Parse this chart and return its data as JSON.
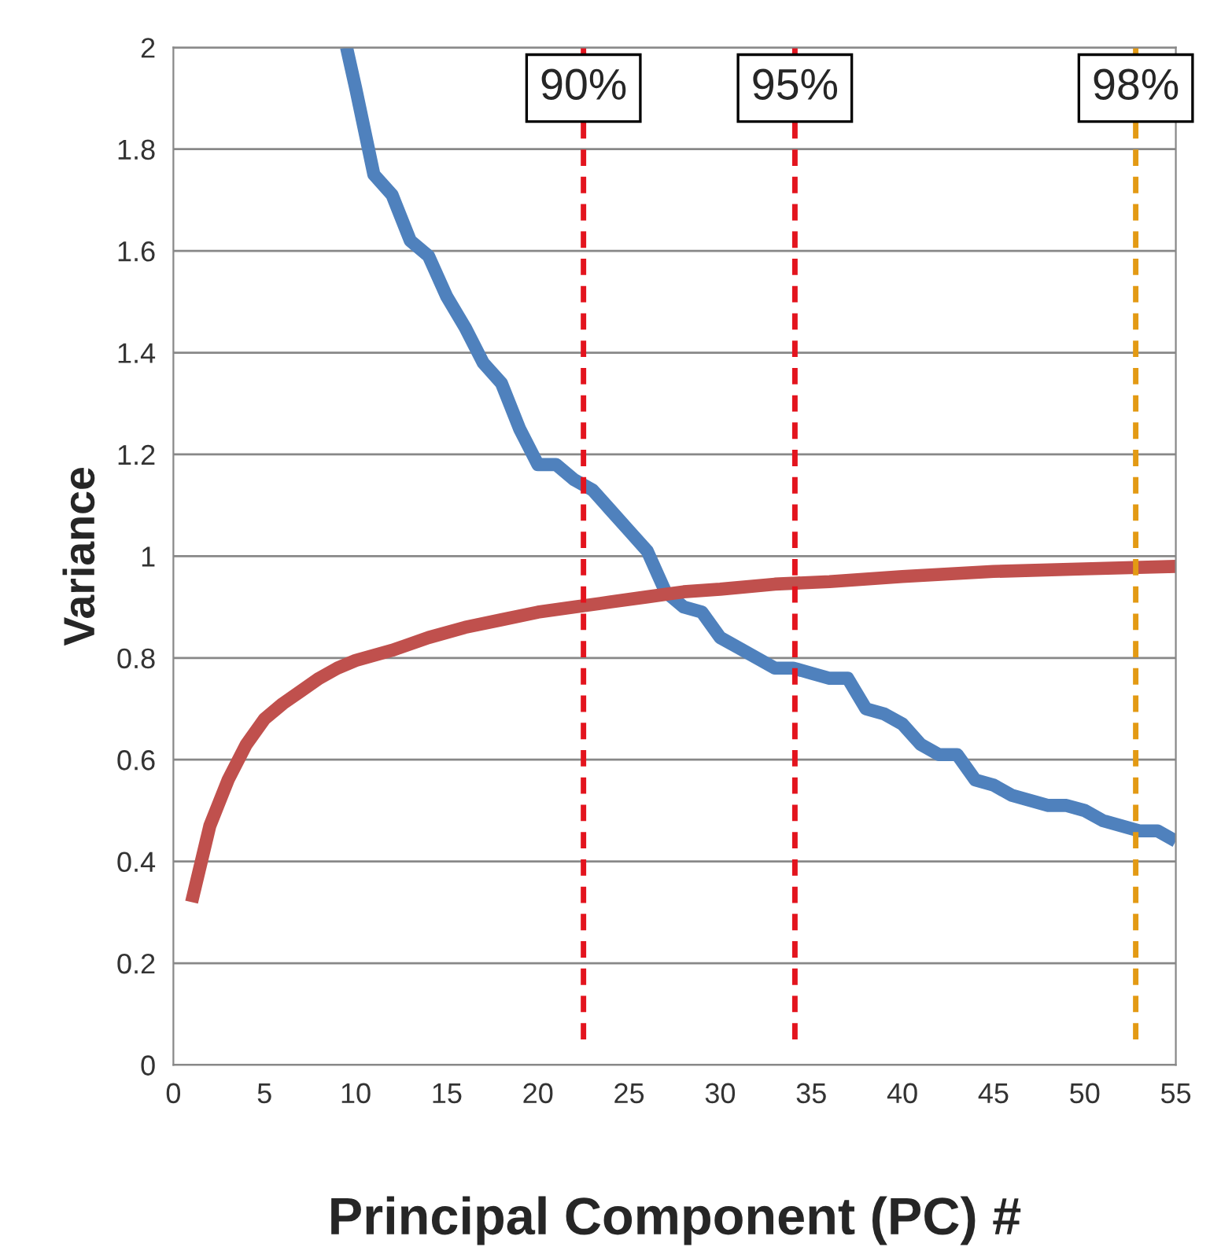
{
  "chart_data": {
    "type": "line",
    "xlabel": "Principal Component (PC) #",
    "ylabel": "Variance",
    "xlim": [
      0,
      55
    ],
    "xticks": [
      0,
      5,
      10,
      15,
      20,
      25,
      30,
      35,
      40,
      45,
      50,
      55
    ],
    "ylim": [
      0,
      2
    ],
    "yticks": [
      0,
      0.2,
      0.4,
      0.6,
      0.8,
      1,
      1.2,
      1.4,
      1.6,
      1.8,
      2
    ],
    "grid": "y",
    "legend": false,
    "marker": "none",
    "line_style": "solid",
    "series": [
      {
        "color": "#4f81bd",
        "x": [
          9.5,
          10,
          11,
          12,
          13,
          14,
          15,
          16,
          17,
          18,
          19,
          20,
          21,
          22,
          23,
          24,
          25,
          26,
          27,
          28,
          29,
          30,
          31,
          32,
          33,
          34,
          35,
          36,
          37,
          38,
          39,
          40,
          41,
          42,
          43,
          44,
          45,
          46,
          47,
          48,
          49,
          50,
          51,
          52,
          53,
          54,
          55
        ],
        "values": [
          2.0,
          1.92,
          1.75,
          1.71,
          1.62,
          1.59,
          1.51,
          1.45,
          1.38,
          1.34,
          1.25,
          1.18,
          1.18,
          1.15,
          1.13,
          1.09,
          1.05,
          1.01,
          0.93,
          0.9,
          0.89,
          0.84,
          0.82,
          0.8,
          0.78,
          0.78,
          0.77,
          0.76,
          0.76,
          0.7,
          0.69,
          0.67,
          0.63,
          0.61,
          0.61,
          0.56,
          0.55,
          0.53,
          0.52,
          0.51,
          0.51,
          0.5,
          0.48,
          0.47,
          0.46,
          0.46,
          0.44
        ]
      },
      {
        "color": "#c0504d",
        "x": [
          1,
          2,
          3,
          4,
          5,
          6,
          7,
          8,
          9,
          10,
          12,
          14,
          16,
          18,
          20,
          22,
          24,
          26,
          28,
          30,
          33,
          36,
          40,
          45,
          50,
          55
        ],
        "values": [
          0.32,
          0.47,
          0.56,
          0.63,
          0.68,
          0.71,
          0.735,
          0.76,
          0.78,
          0.795,
          0.815,
          0.84,
          0.86,
          0.875,
          0.89,
          0.9,
          0.91,
          0.92,
          0.93,
          0.935,
          0.945,
          0.95,
          0.96,
          0.97,
          0.975,
          0.98
        ]
      }
    ],
    "ref_lines": [
      {
        "axis": "x",
        "value": 22.5,
        "color": "#e3141e",
        "line_style": "dashed"
      },
      {
        "axis": "x",
        "value": 34.1,
        "color": "#e3141e",
        "line_style": "dashed"
      },
      {
        "axis": "x",
        "value": 52.8,
        "color": "#e39a14",
        "line_style": "dashed"
      }
    ],
    "annotations": [
      {
        "text": "90%",
        "x": 22.5,
        "y": 1.92
      },
      {
        "text": "95%",
        "x": 34.1,
        "y": 1.92
      },
      {
        "text": "98%",
        "x": 52.8,
        "y": 1.92
      }
    ]
  }
}
